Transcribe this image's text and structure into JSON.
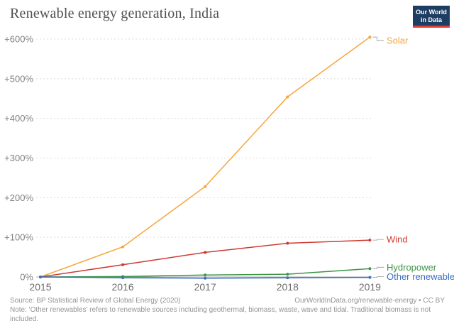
{
  "header": {
    "title": "Renewable energy generation, India"
  },
  "logo": {
    "line1": "Our World",
    "line2": "in Data",
    "bg_color": "#1d3d63",
    "stripe_color": "#dc3e32"
  },
  "chart_data": {
    "type": "line",
    "title": "Renewable energy generation, India",
    "x": [
      2015,
      2016,
      2017,
      2018,
      2019
    ],
    "x_tick_labels": [
      "2015",
      "2016",
      "2017",
      "2018",
      "2019"
    ],
    "y_ticks": [
      0,
      100,
      200,
      300,
      400,
      500,
      600
    ],
    "y_tick_labels": [
      "0%",
      "+100%",
      "+200%",
      "+300%",
      "+400%",
      "+500%",
      "+600%"
    ],
    "ylim": [
      -20,
      620
    ],
    "grid": true,
    "legend_position": "right-end-labels",
    "series": [
      {
        "name": "Solar",
        "color": "#f7a53a",
        "values": [
          0,
          76,
          228,
          454,
          605
        ]
      },
      {
        "name": "Wind",
        "color": "#cf3a33",
        "values": [
          0,
          31,
          62,
          85,
          93
        ]
      },
      {
        "name": "Hydropower",
        "color": "#3d9447",
        "values": [
          0,
          1,
          5,
          7,
          21
        ]
      },
      {
        "name": "Other renewables",
        "color": "#3d6fc0",
        "values": [
          0,
          -2,
          -3,
          -2,
          -1
        ]
      }
    ]
  },
  "footer": {
    "source": "Source: BP Statistical Review of Global Energy (2020)",
    "credit": "OurWorldInData.org/renewable-energy • CC BY",
    "note": "Note: 'Other renewables' refers to renewable sources including geothermal, biomass, waste, wave and tidal. Traditional biomass is not included."
  }
}
